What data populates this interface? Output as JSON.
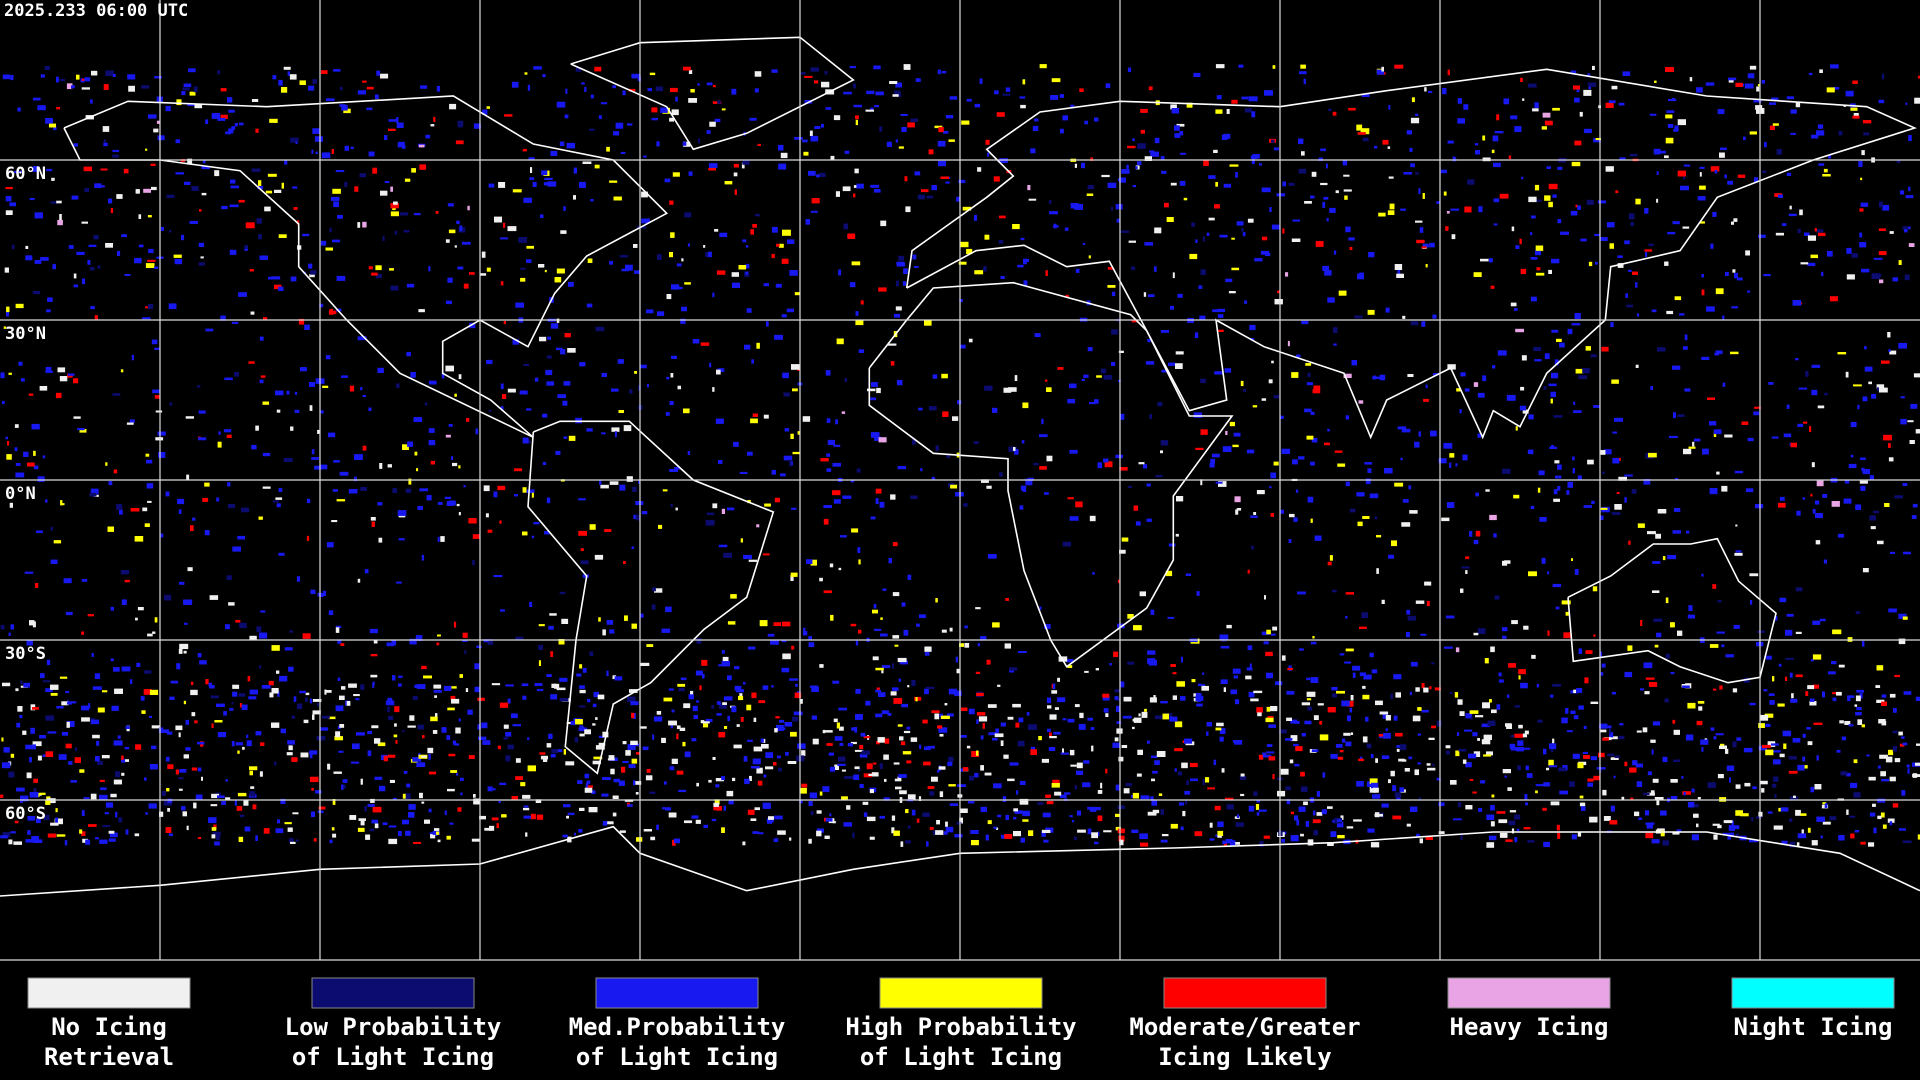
{
  "header": {
    "timestamp": "2025.233 06:00 UTC"
  },
  "map": {
    "latitude_labels": [
      "60°N",
      "30°N",
      "0°N",
      "30°S",
      "60°S"
    ]
  },
  "legend": [
    {
      "label_lines": [
        "No Icing",
        "Retrieval"
      ],
      "color": "#f0f0f0"
    },
    {
      "label_lines": [
        "Low Probability",
        "of Light Icing"
      ],
      "color": "#0b0b70"
    },
    {
      "label_lines": [
        "Med.Probability",
        "of Light Icing"
      ],
      "color": "#1818f0"
    },
    {
      "label_lines": [
        "High Probability",
        "of Light Icing"
      ],
      "color": "#ffff00"
    },
    {
      "label_lines": [
        "Moderate/Greater",
        "Icing Likely"
      ],
      "color": "#ff0000"
    },
    {
      "label_lines": [
        "Heavy Icing"
      ],
      "color": "#e8a4e4"
    },
    {
      "label_lines": [
        "Night Icing"
      ],
      "color": "#00ffff"
    }
  ]
}
